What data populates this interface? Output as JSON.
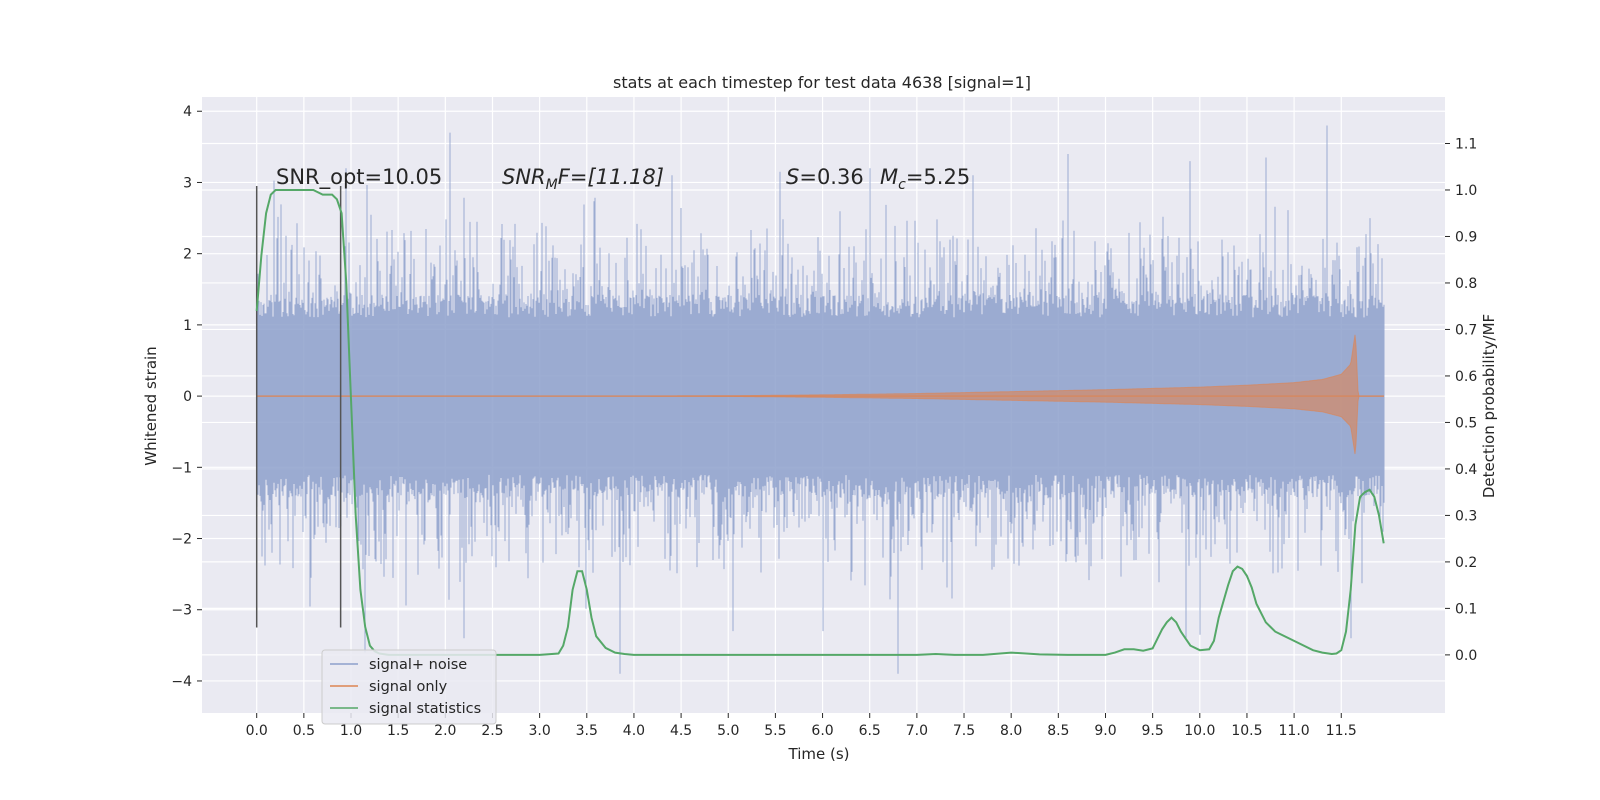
{
  "chart_data": {
    "type": "line",
    "title": "stats at each timestep for test data 4638 [signal=1]",
    "xlabel": "Time (s)",
    "ylabel": "Whitened strain",
    "ylabel_right": "Detection probability/MF",
    "xlim": [
      -0.58,
      12.6
    ],
    "ylim": [
      -4.45,
      4.2
    ],
    "ylim_right": [
      -0.125,
      1.2
    ],
    "x_ticks": [
      "0.0",
      "0.5",
      "1.0",
      "1.5",
      "2.0",
      "2.5",
      "3.0",
      "3.5",
      "4.0",
      "4.5",
      "5.0",
      "5.5",
      "6.0",
      "6.5",
      "7.0",
      "7.5",
      "8.0",
      "8.5",
      "9.0",
      "9.5",
      "10.0",
      "10.5",
      "11.0",
      "11.5"
    ],
    "y_ticks": [
      "4",
      "3",
      "2",
      "1",
      "0",
      "−1",
      "−2",
      "−3",
      "−4"
    ],
    "y_ticks_right": [
      "1.1",
      "1.0",
      "0.9",
      "0.8",
      "0.7",
      "0.6",
      "0.5",
      "0.4",
      "0.3",
      "0.2",
      "0.1",
      "0.0"
    ],
    "grid": true,
    "legend_position": "lower-left",
    "colors": {
      "background": "#eaeaf2",
      "grid": "#ffffff",
      "noise": "#8da0cb",
      "signal": "#dd8452",
      "stats": "#55a868",
      "vline": "#555555"
    },
    "annotations": {
      "snr_opt": "SNR_opt=10.05",
      "snr_mf_sym": "SNR",
      "snr_mf_sub": "M",
      "snr_mf_rest": "F=[11.18]",
      "s_sym": "S",
      "s_val": "=0.36",
      "mc_sym": "M",
      "mc_sub": "c",
      "mc_val": "=5.25"
    },
    "series": [
      {
        "name": "signal+ noise",
        "description_of_values": "whitened strain samples from 0.0 s to 11.95 s, amplitude mostly within ±1.3 with spikes reaching about +3.8 and −3.9",
        "x_range": [
          0.0,
          11.95
        ],
        "typical_extent": [
          -1.3,
          1.3
        ],
        "max": 3.8,
        "min": -3.9
      },
      {
        "name": "signal only",
        "description_of_values": "chirp waveform growing in amplitude, merger near 11.65 s",
        "x": [
          0.0,
          4.0,
          5.0,
          6.0,
          7.0,
          8.0,
          9.0,
          10.0,
          10.5,
          11.0,
          11.3,
          11.5,
          11.6,
          11.65,
          11.68,
          11.95
        ],
        "envelope": [
          0.0,
          0.0,
          0.005,
          0.02,
          0.04,
          0.07,
          0.1,
          0.14,
          0.17,
          0.21,
          0.26,
          0.34,
          0.5,
          1.0,
          0.0,
          0.0
        ]
      },
      {
        "name": "signal statistics",
        "axis": "right",
        "x": [
          0.0,
          0.05,
          0.1,
          0.15,
          0.2,
          0.3,
          0.4,
          0.5,
          0.6,
          0.7,
          0.75,
          0.8,
          0.85,
          0.9,
          0.95,
          1.0,
          1.05,
          1.1,
          1.15,
          1.2,
          1.25,
          1.3,
          1.4,
          1.5,
          2.0,
          2.5,
          3.0,
          3.2,
          3.25,
          3.3,
          3.35,
          3.4,
          3.45,
          3.5,
          3.55,
          3.6,
          3.7,
          3.8,
          3.9,
          4.0,
          5.0,
          6.0,
          6.5,
          7.0,
          7.2,
          7.4,
          7.7,
          8.0,
          8.3,
          8.6,
          9.0,
          9.1,
          9.2,
          9.3,
          9.4,
          9.5,
          9.6,
          9.65,
          9.7,
          9.75,
          9.8,
          9.85,
          9.9,
          10.0,
          10.1,
          10.15,
          10.2,
          10.3,
          10.35,
          10.4,
          10.45,
          10.5,
          10.55,
          10.6,
          10.7,
          10.8,
          11.0,
          11.2,
          11.3,
          11.4,
          11.45,
          11.5,
          11.55,
          11.6,
          11.65,
          11.7,
          11.75,
          11.8,
          11.85,
          11.9,
          11.95
        ],
        "y": [
          0.74,
          0.86,
          0.95,
          0.99,
          1.0,
          1.0,
          1.0,
          1.0,
          1.0,
          0.99,
          0.99,
          0.99,
          0.98,
          0.95,
          0.8,
          0.55,
          0.3,
          0.14,
          0.06,
          0.02,
          0.008,
          0.003,
          0.0,
          0.0,
          0.0,
          0.0,
          0.0,
          0.003,
          0.02,
          0.06,
          0.14,
          0.18,
          0.18,
          0.14,
          0.08,
          0.04,
          0.015,
          0.005,
          0.002,
          0.0,
          0.0,
          0.0,
          0.0,
          0.0,
          0.002,
          0.0,
          0.0,
          0.005,
          0.001,
          0.0,
          0.0,
          0.005,
          0.012,
          0.012,
          0.009,
          0.014,
          0.055,
          0.07,
          0.08,
          0.07,
          0.05,
          0.035,
          0.02,
          0.01,
          0.012,
          0.03,
          0.08,
          0.15,
          0.18,
          0.19,
          0.185,
          0.17,
          0.145,
          0.11,
          0.07,
          0.05,
          0.03,
          0.01,
          0.005,
          0.002,
          0.003,
          0.01,
          0.05,
          0.14,
          0.28,
          0.34,
          0.35,
          0.355,
          0.34,
          0.3,
          0.24
        ]
      }
    ],
    "vlines": [
      0.0,
      0.89
    ]
  }
}
